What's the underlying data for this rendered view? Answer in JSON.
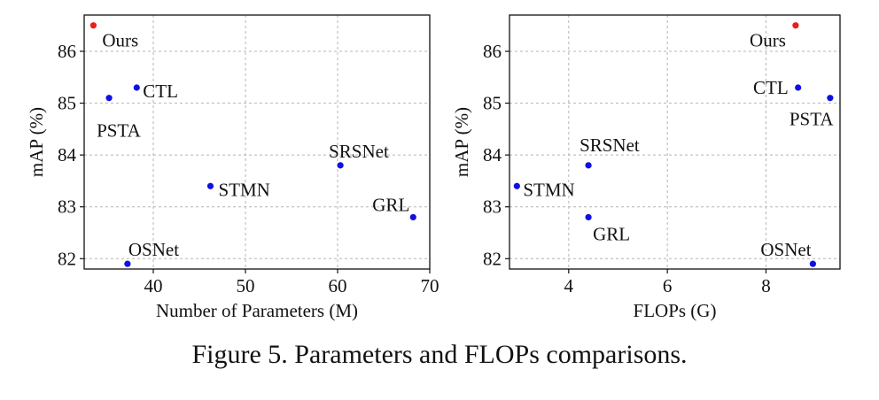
{
  "caption": "Figure 5. Parameters and FLOPs comparisons.",
  "colors": {
    "ours": "#e8201c",
    "others": "#1010e0",
    "grid": "#b5b5b5",
    "axis": "#111111"
  },
  "chart_data": [
    {
      "type": "scatter",
      "xlabel": "Number of Parameters (M)",
      "ylabel": "mAP (%)",
      "xlim": [
        32.5,
        70
      ],
      "ylim": [
        81.8,
        86.7
      ],
      "xticks": [
        40,
        50,
        60,
        70
      ],
      "yticks": [
        82,
        83,
        84,
        85,
        86
      ],
      "grid": true,
      "points": [
        {
          "label": "Ours",
          "x": 33.5,
          "y": 86.5,
          "highlight": true
        },
        {
          "label": "CTL",
          "x": 38.2,
          "y": 85.3
        },
        {
          "label": "PSTA",
          "x": 35.2,
          "y": 85.1
        },
        {
          "label": "SRSNet",
          "x": 60.3,
          "y": 83.8
        },
        {
          "label": "STMN",
          "x": 46.2,
          "y": 83.4
        },
        {
          "label": "GRL",
          "x": 68.2,
          "y": 82.8
        },
        {
          "label": "OSNet",
          "x": 37.2,
          "y": 81.9
        }
      ]
    },
    {
      "type": "scatter",
      "xlabel": "FLOPs (G)",
      "ylabel": "mAP (%)",
      "xlim": [
        2.8,
        9.5
      ],
      "ylim": [
        81.8,
        86.7
      ],
      "xticks": [
        4,
        6,
        8
      ],
      "yticks": [
        82,
        83,
        84,
        85,
        86
      ],
      "grid": true,
      "points": [
        {
          "label": "Ours",
          "x": 8.6,
          "y": 86.5,
          "highlight": true
        },
        {
          "label": "CTL",
          "x": 8.65,
          "y": 85.3
        },
        {
          "label": "PSTA",
          "x": 9.3,
          "y": 85.1
        },
        {
          "label": "SRSNet",
          "x": 4.4,
          "y": 83.8
        },
        {
          "label": "STMN",
          "x": 2.95,
          "y": 83.4
        },
        {
          "label": "GRL",
          "x": 4.4,
          "y": 82.8
        },
        {
          "label": "OSNet",
          "x": 8.95,
          "y": 81.9
        }
      ]
    }
  ]
}
